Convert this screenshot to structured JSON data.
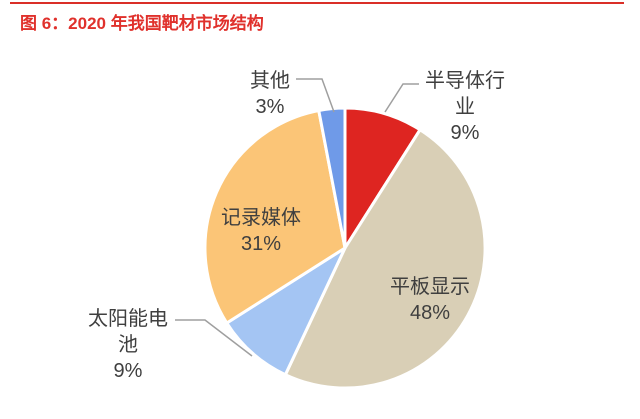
{
  "header": {
    "title": "图 6：2020 年我国靶材市场结构",
    "accent_color": "#e0312c"
  },
  "chart_data": {
    "type": "pie",
    "title": "图 6：2020 年我国靶材市场结构",
    "start_angle": "12 o'clock",
    "direction": "clockwise",
    "legend_position": "none",
    "total": 100,
    "slices": [
      {
        "label": "半导体行业",
        "value": 9,
        "pct": "9%",
        "color": "#de2521",
        "label_placement": "outside-top-right"
      },
      {
        "label": "平板显示",
        "value": 48,
        "pct": "48%",
        "color": "#d9cfb6",
        "label_placement": "inside"
      },
      {
        "label": "太阳能电池",
        "value": 9,
        "pct": "9%",
        "color": "#a4c5f3",
        "label_placement": "outside-bottom-left"
      },
      {
        "label": "记录媒体",
        "value": 31,
        "pct": "31%",
        "color": "#fbc577",
        "label_placement": "inside"
      },
      {
        "label": "其他",
        "value": 3,
        "pct": "3%",
        "color": "#6f9ae8",
        "label_placement": "outside-top-left"
      }
    ],
    "style": {
      "slice_border_color": "#ffffff",
      "slice_border_width": 3,
      "label_color": "#3f3f3f",
      "leader_line_color": "#9f9f9f"
    }
  }
}
